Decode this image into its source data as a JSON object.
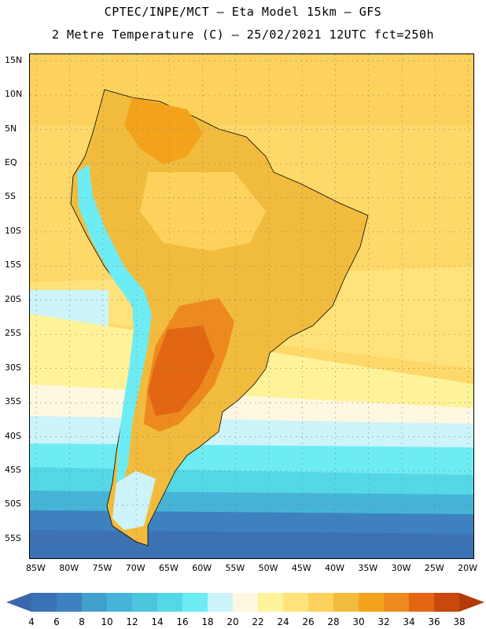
{
  "header": {
    "title_line1": "CPTEC/INPE/MCT –  Eta Model 15km – GFS",
    "title_line2": "2 Metre Temperature (C) – 25/02/2021 12UTC fct=250h"
  },
  "map": {
    "lat_ticks": [
      "15N",
      "10N",
      "5N",
      "EQ",
      "5S",
      "10S",
      "15S",
      "20S",
      "25S",
      "30S",
      "35S",
      "40S",
      "45S",
      "50S",
      "55S"
    ],
    "lon_ticks": [
      "85W",
      "80W",
      "75W",
      "70W",
      "65W",
      "60W",
      "55W",
      "50W",
      "45W",
      "40W",
      "35W",
      "30W",
      "25W",
      "20W"
    ],
    "lon_range": [
      -86,
      -19
    ],
    "lat_range": [
      16,
      -58
    ]
  },
  "colorbar": {
    "labels": [
      "4",
      "6",
      "8",
      "10",
      "12",
      "14",
      "16",
      "18",
      "20",
      "22",
      "24",
      "26",
      "28",
      "30",
      "32",
      "34",
      "36",
      "38"
    ],
    "colors": [
      "#3b72b4",
      "#3d82bf",
      "#42a0cc",
      "#46b4d8",
      "#4cc6dc",
      "#55d8e6",
      "#6eecf4",
      "#cdf3fb",
      "#fff8e0",
      "#fff39a",
      "#ffe37a",
      "#fcd25c",
      "#f1bc3d",
      "#f3a31b",
      "#ec8a1f",
      "#e36712",
      "#c9480b"
    ],
    "low_color": "#3a66ab",
    "high_color": "#b53a0a"
  }
}
